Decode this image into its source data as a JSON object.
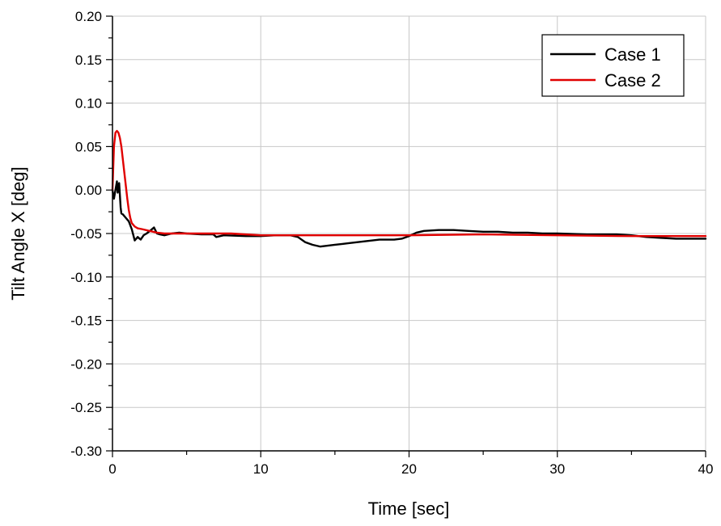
{
  "chart_data": {
    "type": "line",
    "title": "",
    "xlabel": "Time [sec]",
    "ylabel": "Tilt Angle X [deg]",
    "xlim": [
      0,
      40
    ],
    "ylim": [
      -0.3,
      0.2
    ],
    "x_ticks": [
      0,
      10,
      20,
      30,
      40
    ],
    "x_tick_labels": [
      "0",
      "10",
      "20",
      "30",
      "40"
    ],
    "x_minor_step": 5,
    "y_ticks": [
      -0.3,
      -0.25,
      -0.2,
      -0.15,
      -0.1,
      -0.05,
      0.0,
      0.05,
      0.1,
      0.15,
      0.2
    ],
    "y_tick_labels": [
      "-0.30",
      "-0.25",
      "-0.20",
      "-0.15",
      "-0.10",
      "-0.05",
      "0.00",
      "0.05",
      "0.10",
      "0.15",
      "0.20"
    ],
    "y_minor_step": 0.025,
    "grid": true,
    "legend_position": "top-right",
    "series": [
      {
        "name": "Case 1",
        "color": "#000000",
        "x": [
          0,
          0.1,
          0.2,
          0.3,
          0.35,
          0.45,
          0.55,
          0.6,
          0.7,
          0.9,
          1.1,
          1.3,
          1.5,
          1.7,
          1.9,
          2.1,
          2.3,
          2.6,
          2.8,
          3.0,
          3.2,
          3.5,
          4.0,
          4.5,
          5,
          6,
          6.8,
          7.0,
          7.5,
          9,
          10,
          11,
          12,
          12.5,
          13,
          13.5,
          14,
          14.5,
          15,
          15.5,
          16,
          17,
          18,
          19,
          19.5,
          20,
          20.5,
          21,
          22,
          23,
          24,
          25,
          26,
          27,
          28,
          29,
          30,
          32,
          34,
          35,
          36,
          37,
          38,
          39,
          40
        ],
        "y": [
          0.0,
          -0.01,
          0.0,
          0.01,
          -0.003,
          0.008,
          -0.02,
          -0.027,
          -0.028,
          -0.032,
          -0.036,
          -0.045,
          -0.058,
          -0.054,
          -0.057,
          -0.052,
          -0.05,
          -0.046,
          -0.043,
          -0.05,
          -0.051,
          -0.052,
          -0.05,
          -0.049,
          -0.05,
          -0.051,
          -0.051,
          -0.054,
          -0.052,
          -0.053,
          -0.053,
          -0.052,
          -0.052,
          -0.054,
          -0.06,
          -0.063,
          -0.065,
          -0.064,
          -0.063,
          -0.062,
          -0.061,
          -0.059,
          -0.057,
          -0.057,
          -0.056,
          -0.053,
          -0.049,
          -0.047,
          -0.046,
          -0.046,
          -0.047,
          -0.048,
          -0.048,
          -0.049,
          -0.049,
          -0.05,
          -0.05,
          -0.051,
          -0.051,
          -0.052,
          -0.054,
          -0.055,
          -0.056,
          -0.056,
          -0.056
        ]
      },
      {
        "name": "Case 2",
        "color": "#e00000",
        "x": [
          0,
          0.1,
          0.2,
          0.3,
          0.4,
          0.5,
          0.6,
          0.7,
          0.8,
          0.9,
          1.0,
          1.1,
          1.2,
          1.3,
          1.5,
          1.7,
          2.0,
          2.5,
          3.0,
          3.5,
          4.0,
          5,
          6,
          8,
          10,
          15,
          20,
          25,
          30,
          35,
          40
        ],
        "y": [
          0.0,
          0.05,
          0.066,
          0.068,
          0.066,
          0.06,
          0.05,
          0.035,
          0.02,
          0.005,
          -0.01,
          -0.023,
          -0.032,
          -0.038,
          -0.042,
          -0.044,
          -0.045,
          -0.047,
          -0.049,
          -0.05,
          -0.05,
          -0.05,
          -0.05,
          -0.05,
          -0.052,
          -0.052,
          -0.052,
          -0.051,
          -0.052,
          -0.053,
          -0.053
        ]
      }
    ]
  }
}
